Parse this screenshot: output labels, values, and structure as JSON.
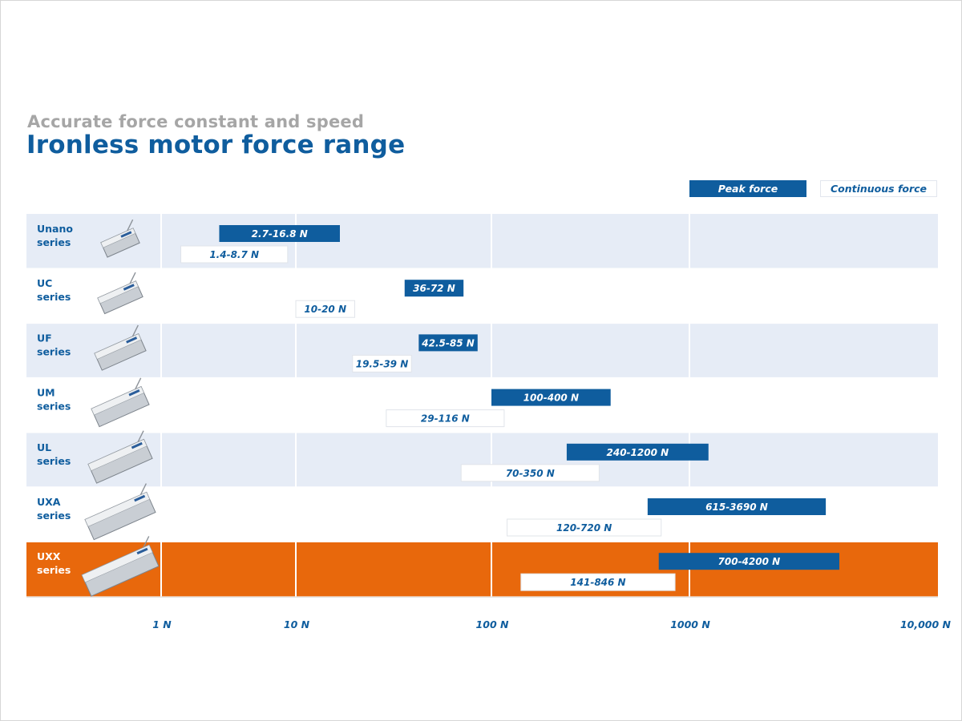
{
  "header": {
    "subtitle": "Accurate force constant and speed",
    "title": "Ironless motor force range"
  },
  "legend": {
    "peak_label": "Peak force",
    "continuous_label": "Continuous force"
  },
  "colors": {
    "brand_blue": "#0f5d9e",
    "row_band": "#e6ecf6",
    "highlight": "#e8680c",
    "subtitle_gray": "#a6a6a6"
  },
  "chart_data": {
    "type": "bar",
    "orientation": "horizontal-range",
    "x_scale": "log",
    "x_ticks": [
      {
        "value": 1,
        "label": "1 N"
      },
      {
        "value": 10,
        "label": "10 N"
      },
      {
        "value": 100,
        "label": "100 N"
      },
      {
        "value": 1000,
        "label": "1000 N"
      },
      {
        "value": 10000,
        "label": "10,000 N"
      }
    ],
    "series_names": [
      "Peak force",
      "Continuous force"
    ],
    "rows": [
      {
        "name": "Unano",
        "suffix": "series",
        "icon": "unano-motor-icon",
        "peak": [
          2.7,
          16.8
        ],
        "peak_label": "2.7-16.8 N",
        "continuous": [
          1.4,
          8.7
        ],
        "continuous_label": "1.4-8.7 N",
        "highlight": false
      },
      {
        "name": "UC",
        "suffix": "series",
        "icon": "uc-motor-icon",
        "peak": [
          36,
          72
        ],
        "peak_label": "36-72 N",
        "continuous": [
          10,
          20
        ],
        "continuous_label": "10-20 N",
        "highlight": false
      },
      {
        "name": "UF",
        "suffix": "series",
        "icon": "uf-motor-icon",
        "peak": [
          42.5,
          85
        ],
        "peak_label": "42.5-85 N",
        "continuous": [
          19.5,
          39
        ],
        "continuous_label": "19.5-39 N",
        "highlight": false
      },
      {
        "name": "UM",
        "suffix": "series",
        "icon": "um-motor-icon",
        "peak": [
          100,
          400
        ],
        "peak_label": "100-400 N",
        "continuous": [
          29,
          116
        ],
        "continuous_label": "29-116 N",
        "highlight": false
      },
      {
        "name": "UL",
        "suffix": "series",
        "icon": "ul-motor-icon",
        "peak": [
          240,
          1200
        ],
        "peak_label": "240-1200 N",
        "continuous": [
          70,
          350
        ],
        "continuous_label": "70-350 N",
        "highlight": false
      },
      {
        "name": "UXA",
        "suffix": "series",
        "icon": "uxa-motor-icon",
        "peak": [
          615,
          3690
        ],
        "peak_label": "615-3690 N",
        "continuous": [
          120,
          720
        ],
        "continuous_label": "120-720 N",
        "highlight": false
      },
      {
        "name": "UXX",
        "suffix": "series",
        "icon": "uxx-motor-icon",
        "peak": [
          700,
          4200
        ],
        "peak_label": "700-4200 N",
        "continuous": [
          141,
          846
        ],
        "continuous_label": "141-846 N",
        "highlight": true
      }
    ]
  }
}
